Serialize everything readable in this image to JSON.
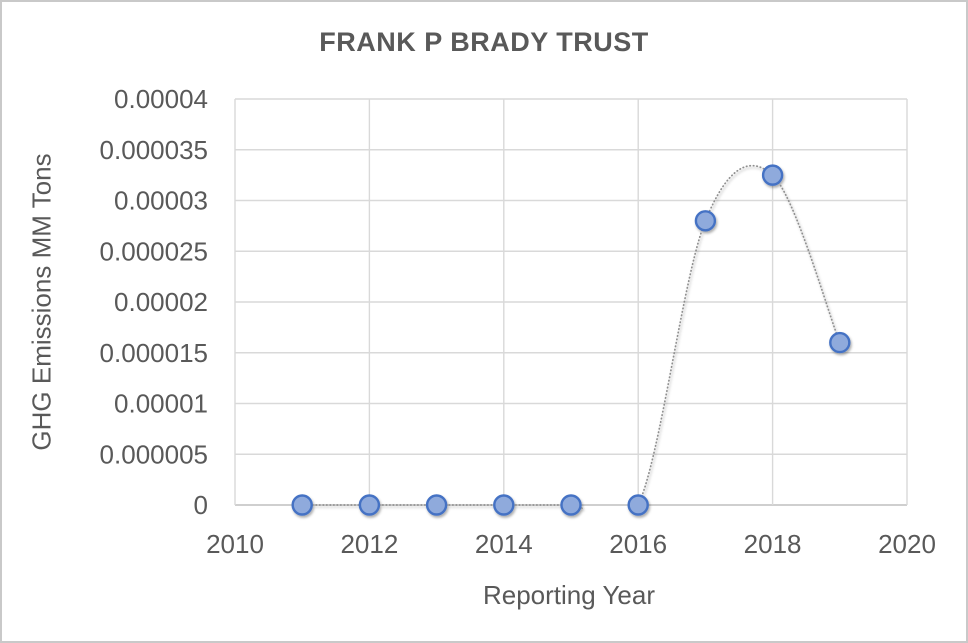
{
  "chart_data": {
    "type": "scatter",
    "title": "FRANK P BRADY TRUST",
    "xlabel": "Reporting Year",
    "ylabel": "GHG Emissions MM Tons",
    "x": [
      2011,
      2012,
      2013,
      2014,
      2015,
      2016,
      2017,
      2018,
      2019
    ],
    "y": [
      0,
      0,
      0,
      0,
      0,
      0,
      2.8e-05,
      3.25e-05,
      1.6e-05
    ],
    "xlim": [
      2010,
      2020
    ],
    "ylim": [
      0,
      4e-05
    ],
    "x_ticks": [
      2010,
      2012,
      2014,
      2016,
      2018,
      2020
    ],
    "x_tick_labels": [
      "2010",
      "2012",
      "2014",
      "2016",
      "2018",
      "2020"
    ],
    "y_ticks": [
      0,
      5e-06,
      1e-05,
      1.5e-05,
      2e-05,
      2.5e-05,
      3e-05,
      3.5e-05,
      4e-05
    ],
    "y_tick_labels": [
      "0",
      "0.000005",
      "0.00001",
      "0.000015",
      "0.00002",
      "0.000025",
      "0.00003",
      "0.000035",
      "0.00004"
    ],
    "grid": true,
    "legend": "none",
    "line_style": "dotted-smooth",
    "marker": "circle",
    "colors": {
      "marker_fill": "#8faadc",
      "marker_stroke": "#4472c4",
      "line": "#8f8f8f",
      "gridline": "#d9d9d9",
      "axis_line": "#bfbfbf",
      "text": "#595959"
    }
  }
}
